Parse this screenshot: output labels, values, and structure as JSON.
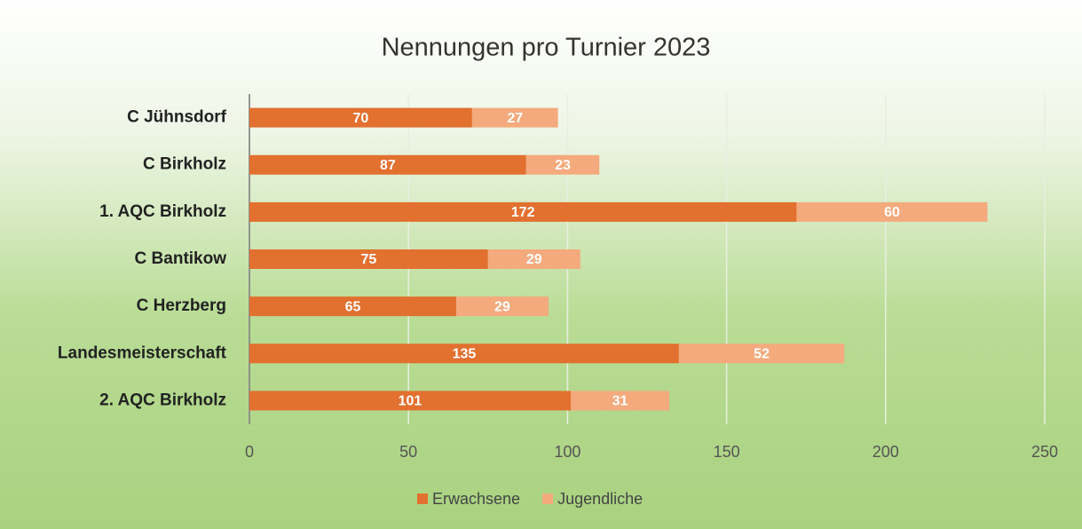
{
  "chart_data": {
    "type": "bar",
    "orientation": "horizontal",
    "stacked": true,
    "title": "Nennungen pro Turnier 2023",
    "categories": [
      "C Jühnsdorf",
      "C Birkholz",
      "1. AQC Birkholz",
      "C Bantikow",
      "C Herzberg",
      "Landesmeisterschaft",
      "2. AQC Birkholz"
    ],
    "series": [
      {
        "name": "Erwachsene",
        "color": "#e2702f",
        "values": [
          70,
          87,
          172,
          75,
          65,
          135,
          101
        ]
      },
      {
        "name": "Jugendliche",
        "color": "#f4aa7c",
        "values": [
          27,
          23,
          60,
          29,
          29,
          52,
          31
        ]
      }
    ],
    "xlim": [
      0,
      250
    ],
    "xticks": [
      0,
      50,
      100,
      150,
      200,
      250
    ],
    "grid": true,
    "legend": "bottom"
  }
}
